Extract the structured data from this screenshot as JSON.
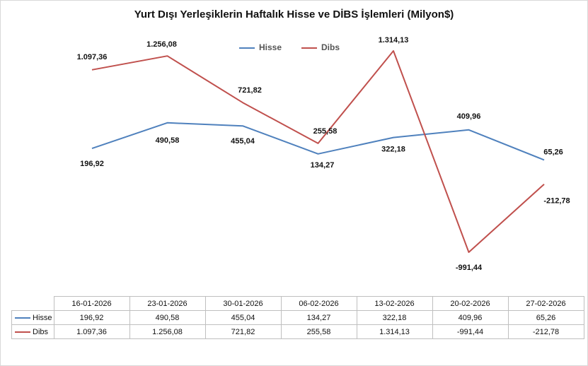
{
  "chart_data": {
    "type": "line",
    "title": "Yurt Dışı Yerleşiklerin Haftalık Hisse ve DİBS İşlemleri (Milyon$)",
    "categories": [
      "16-01-2026",
      "23-01-2026",
      "30-01-2026",
      "06-02-2026",
      "13-02-2026",
      "20-02-2026",
      "27-02-2026"
    ],
    "series": [
      {
        "name": "Hisse",
        "color": "#4f81bd",
        "values": [
          196.92,
          490.58,
          455.04,
          134.27,
          322.18,
          409.96,
          65.26
        ],
        "labels": [
          "196,92",
          "490,58",
          "455,04",
          "134,27",
          "322,18",
          "409,96",
          "65,26"
        ]
      },
      {
        "name": "Dibs",
        "color": "#c0504d",
        "values": [
          1097.36,
          1256.08,
          721.82,
          255.58,
          1314.13,
          -991.44,
          -212.78
        ],
        "labels": [
          "1.097,36",
          "1.256,08",
          "721,82",
          "255,58",
          "1.314,13",
          "-991,44",
          "-212,78"
        ]
      }
    ],
    "table": {
      "rows": [
        {
          "name": "Hisse",
          "values": [
            "196,92",
            "490,58",
            "455,04",
            "134,27",
            "322,18",
            "409,96",
            "65,26"
          ]
        },
        {
          "name": "Dibs",
          "values": [
            "1.097,36",
            "1.256,08",
            "721,82",
            "255,58",
            "1.314,13",
            "-991,44",
            "-212,78"
          ]
        }
      ]
    },
    "legend_position": "top-center",
    "grid": false
  }
}
